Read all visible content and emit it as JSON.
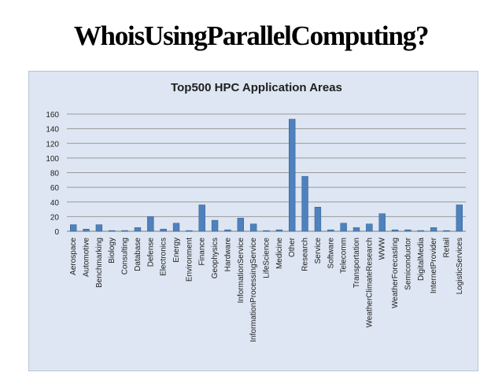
{
  "slide": {
    "title": "WhoisUsingParallelComputing?"
  },
  "chart_data": {
    "type": "bar",
    "title": "Top500 HPC Application Areas",
    "xlabel": "",
    "ylabel": "",
    "ylim": [
      0,
      160
    ],
    "yticks": [
      0,
      20,
      40,
      60,
      80,
      100,
      120,
      140,
      160
    ],
    "grid": true,
    "legend": "none",
    "bar_color": "#4f81bd",
    "categories": [
      "Aerospace",
      "Automotive",
      "Benchmarking",
      "Biology",
      "Consulting",
      "Database",
      "Defense",
      "Electronics",
      "Energy",
      "Environment",
      "Finance",
      "Geophysics",
      "Hardware",
      "InformationService",
      "InformationProcessingService",
      "LifeScience",
      "Medicine",
      "Other",
      "Research",
      "Service",
      "Software",
      "Telecomm",
      "Transportation",
      "WeatherClimateResearch",
      "WWW",
      "WeatherForecasting",
      "Semiconductor",
      "DigitalMedia",
      "InternetProvider",
      "Retail",
      "LogisticServices"
    ],
    "values": [
      9,
      3,
      9,
      1,
      1,
      5,
      20,
      3,
      11,
      1,
      36,
      15,
      2,
      18,
      10,
      1,
      2,
      153,
      75,
      33,
      2,
      11,
      5,
      10,
      24,
      2,
      2,
      1,
      5,
      1,
      36
    ]
  }
}
